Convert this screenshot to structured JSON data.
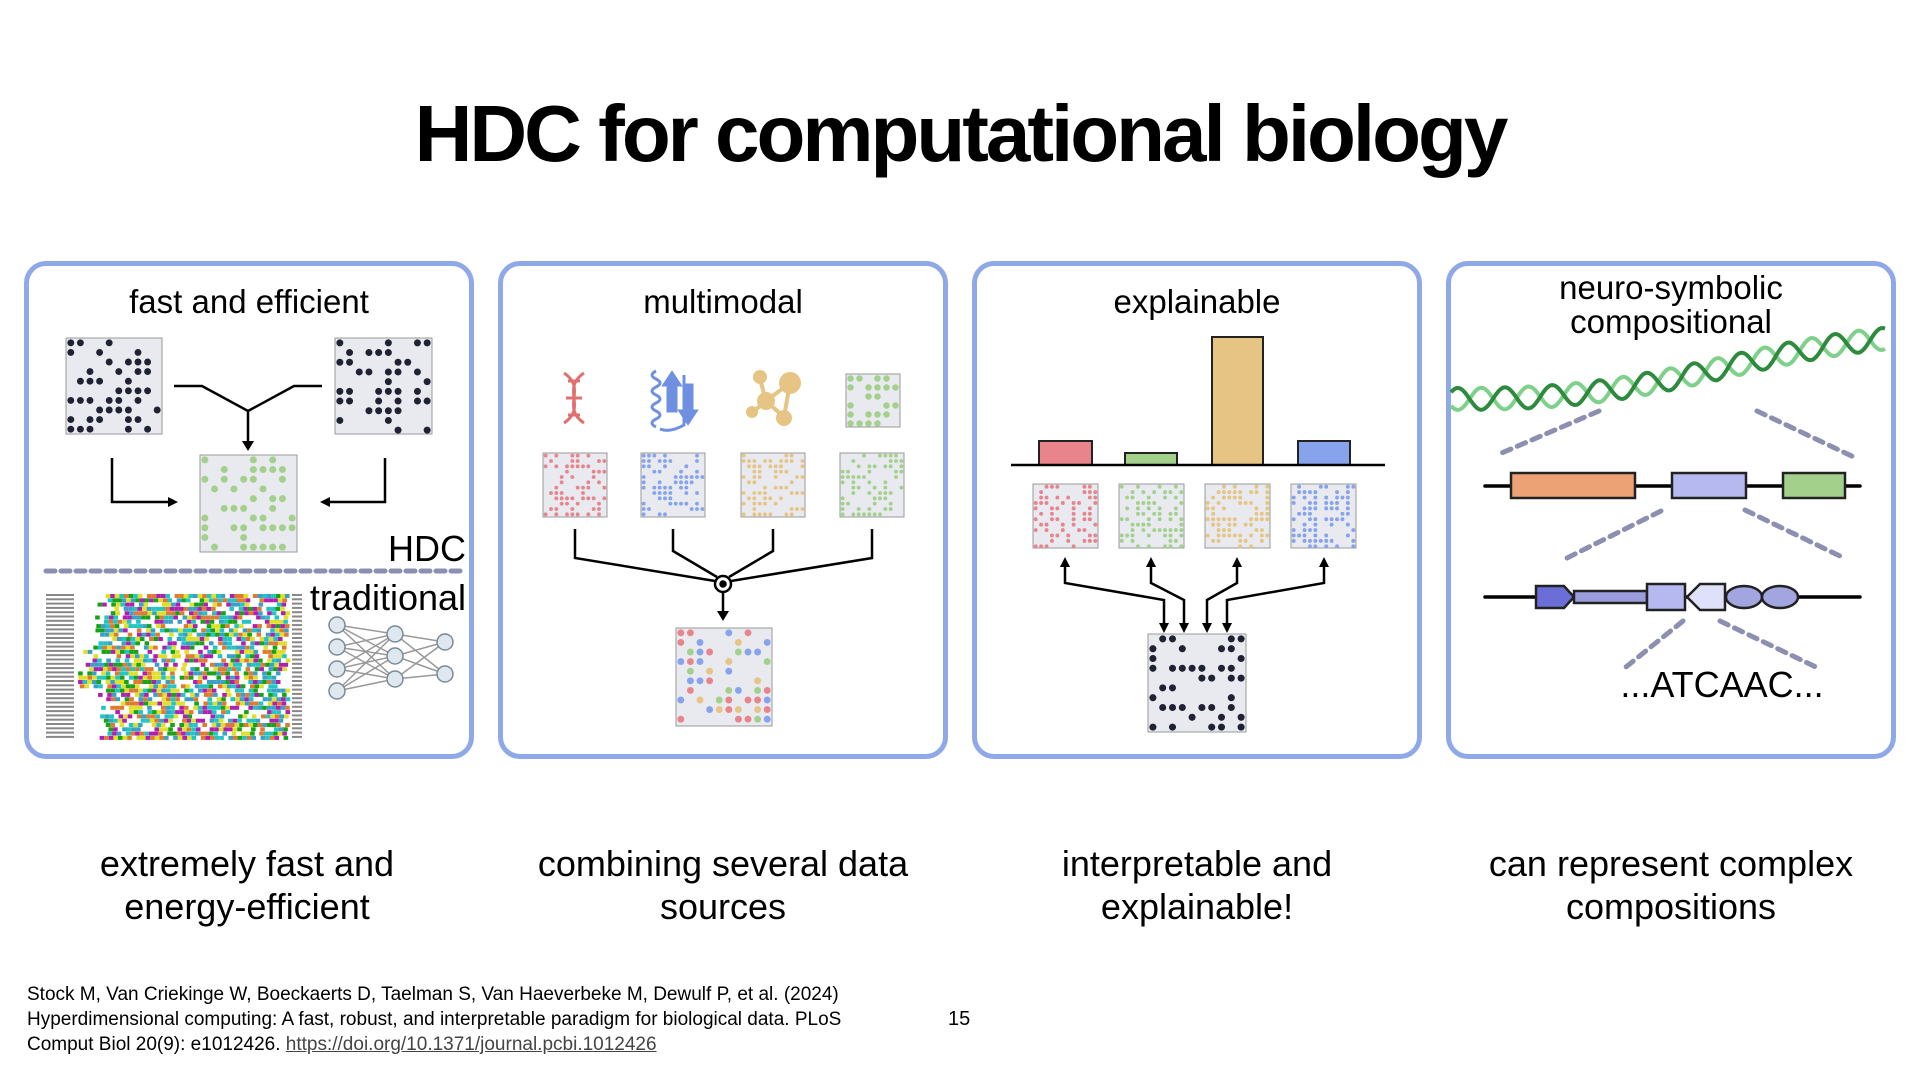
{
  "title": "HDC for computational biology",
  "panels": [
    {
      "heading": "fast and efficient",
      "label_hdc": "HDC",
      "label_traditional": "traditional",
      "caption_line1": "extremely fast and",
      "caption_line2": "energy-efficient"
    },
    {
      "heading": "multimodal",
      "caption_line1": "combining several data",
      "caption_line2": "sources"
    },
    {
      "heading": "explainable",
      "caption_line1": "interpretable and",
      "caption_line2": "explainable!"
    },
    {
      "heading_line1": "neuro-symbolic",
      "heading_line2": "compositional",
      "sequence": "...ATCAAC...",
      "caption_line1": "can represent complex",
      "caption_line2": "compositions"
    }
  ],
  "reference": {
    "line1": "Stock M, Van Criekinge W, Boeckaerts D, Taelman S, Van Haeverbeke M, Dewulf P, et al. (2024)",
    "line2": "Hyperdimensional computing: A fast, robust, and interpretable paradigm for biological data. PLoS",
    "line3": "Comput Biol 20(9): e1012426.",
    "link": "https://doi.org/10.1371/journal.pcbi.1012426"
  },
  "page_number": "15",
  "colors": {
    "panel_border": "#8fa8e8",
    "pink": "#e8848c",
    "blue": "#86a3ec",
    "yellow": "#e6c584",
    "green": "#a3d18c",
    "dark": "#1f2232",
    "matrix_bg": "#e8eaf0",
    "dna": "#2e8b3e"
  }
}
